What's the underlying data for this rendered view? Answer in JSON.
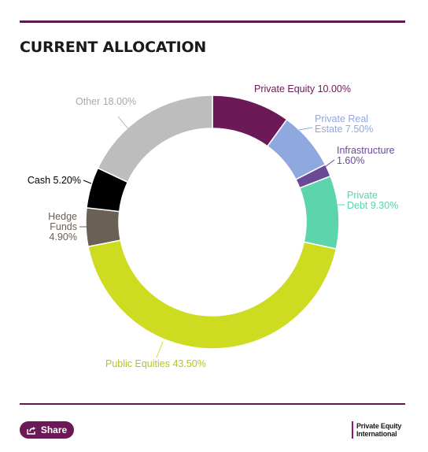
{
  "header": {
    "title": "CURRENT ALLOCATION"
  },
  "chart_data": {
    "type": "pie",
    "title": "CURRENT ALLOCATION",
    "slices": [
      {
        "label": "Private Equity 10.00%",
        "value": 10.0,
        "color": "#6b1a57",
        "label_lines": [
          "Private Equity 10.00%"
        ]
      },
      {
        "label": "Private Real Estate 7.50%",
        "value": 7.5,
        "color": "#8fa8e0",
        "label_lines": [
          "Private Real",
          "Estate 7.50%"
        ]
      },
      {
        "label": "Infrastructure 1.60%",
        "value": 1.6,
        "color": "#6a4a96",
        "label_lines": [
          "Infrastructure",
          "1.60%"
        ]
      },
      {
        "label": "Private Debt 9.30%",
        "value": 9.3,
        "color": "#5cd4ac",
        "label_lines": [
          "Private",
          "Debt 9.30%"
        ]
      },
      {
        "label": "Public Equities 43.50%",
        "value": 43.5,
        "color": "#cddc20",
        "label_lines": [
          "Public Equities 43.50%"
        ]
      },
      {
        "label": "Hedge Funds 4.90%",
        "value": 4.9,
        "color": "#6b6056",
        "label_lines": [
          "Hedge",
          "Funds",
          "4.90%"
        ]
      },
      {
        "label": "Cash 5.20%",
        "value": 5.2,
        "color": "#000000",
        "label_lines": [
          "Cash 5.20%"
        ]
      },
      {
        "label": "Other 18.00%",
        "value": 18.0,
        "color": "#bdbdbd",
        "label_lines": [
          "Other 18.00%"
        ]
      }
    ]
  },
  "footer": {
    "share_label": "Share",
    "logo_line1": "Private Equity",
    "logo_line2": "International"
  }
}
